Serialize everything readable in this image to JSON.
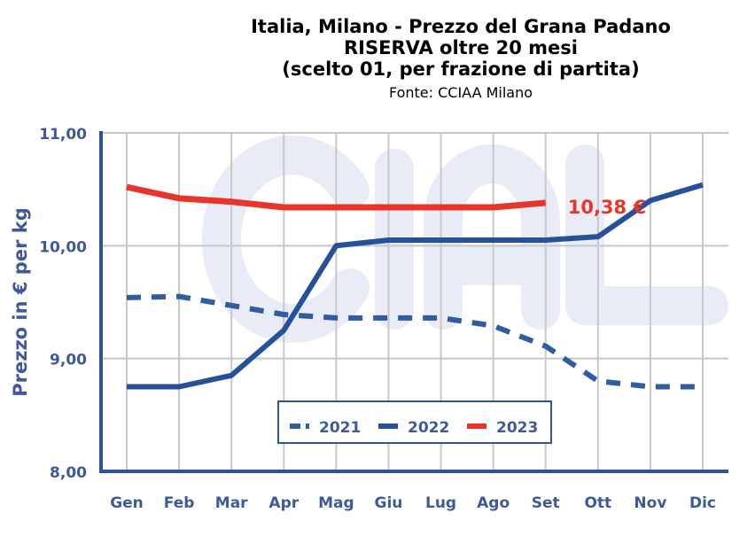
{
  "chart_data": {
    "type": "line",
    "title": [
      "Italia, Milano - Prezzo del Grana Padano",
      "RISERVA oltre 20 mesi",
      "(scelto 01, per frazione di partita)"
    ],
    "subtitle": "Fonte: CCIAA Milano",
    "xlabel": "",
    "ylabel": "Prezzo in € per kg",
    "ylim": [
      8,
      11
    ],
    "yticks": [
      "8,00",
      "9,00",
      "10,00",
      "11,00"
    ],
    "ytick_values": [
      8,
      9,
      10,
      11
    ],
    "categories": [
      "Gen",
      "Feb",
      "Mar",
      "Apr",
      "Mag",
      "Giu",
      "Lug",
      "Ago",
      "Set",
      "Ott",
      "Nov",
      "Dic"
    ],
    "grid": true,
    "legend_position": "bottom-center",
    "watermark": "CIAL",
    "series": [
      {
        "name": "2021",
        "color": "#2f5da0",
        "style": "dashed",
        "values": [
          9.54,
          9.55,
          9.47,
          9.39,
          9.36,
          9.36,
          9.36,
          9.29,
          9.11,
          8.8,
          8.75,
          8.75
        ]
      },
      {
        "name": "2022",
        "color": "#27509b",
        "style": "solid",
        "values": [
          8.75,
          8.75,
          8.85,
          9.25,
          10.0,
          10.05,
          10.05,
          10.05,
          10.05,
          10.08,
          10.4,
          10.54
        ]
      },
      {
        "name": "2023",
        "color": "#e8352a",
        "style": "solid",
        "values": [
          10.52,
          10.42,
          10.39,
          10.34,
          10.34,
          10.34,
          10.34,
          10.34,
          10.38,
          null,
          null,
          null
        ]
      }
    ],
    "annotations": [
      {
        "text": "10,38 €",
        "series": "2023",
        "category": "Set"
      }
    ]
  }
}
